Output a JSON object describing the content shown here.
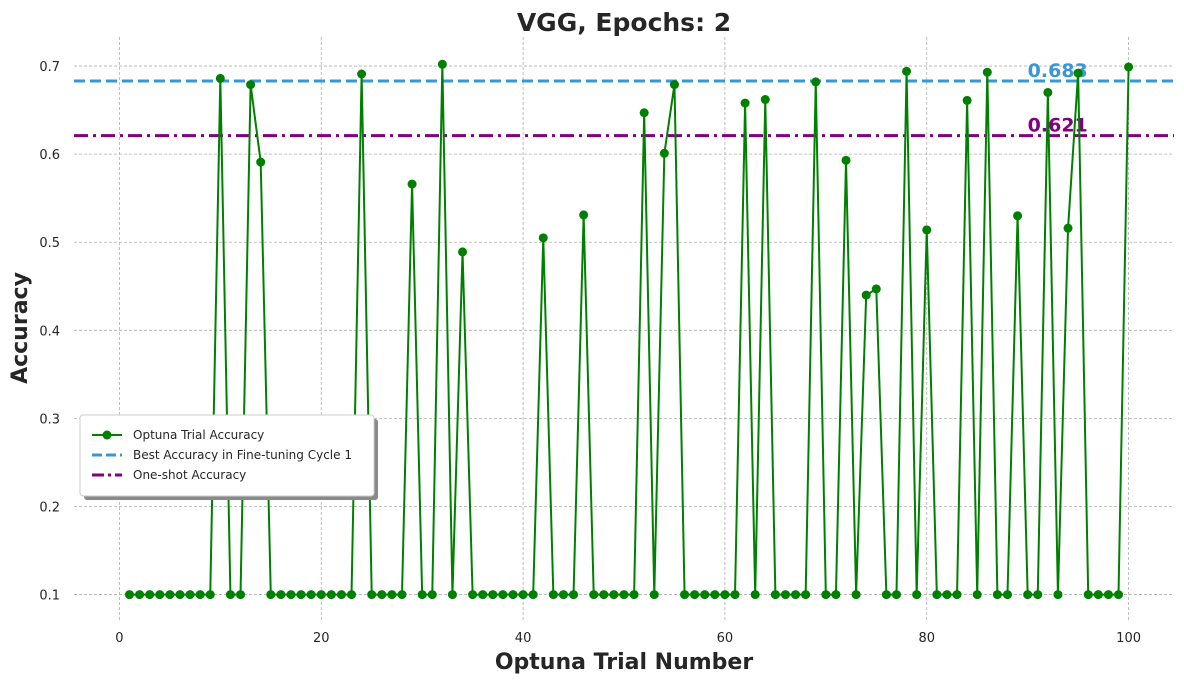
{
  "chart_data": {
    "type": "line",
    "title": "VGG, Epochs: 2",
    "xlabel": "Optuna Trial Number",
    "ylabel": "Accuracy",
    "xlim": [
      -4.5,
      104.5
    ],
    "ylim": [
      0.07,
      0.733
    ],
    "xticks": [
      0,
      20,
      40,
      60,
      80,
      100
    ],
    "xtick_labels": [
      "0",
      "20",
      "40",
      "60",
      "80",
      "100"
    ],
    "yticks": [
      0.1,
      0.2,
      0.3,
      0.4,
      0.5,
      0.6,
      0.7
    ],
    "ytick_labels": [
      "0.1",
      "0.2",
      "0.3",
      "0.4",
      "0.5",
      "0.6",
      "0.7"
    ],
    "grid": true,
    "legend_position": "center-left",
    "series": [
      {
        "name": "Optuna Trial Accuracy",
        "color": "#008000",
        "marker": "circle",
        "x": [
          1,
          2,
          3,
          4,
          5,
          6,
          7,
          8,
          9,
          10,
          11,
          12,
          13,
          14,
          15,
          16,
          17,
          18,
          19,
          20,
          21,
          22,
          23,
          24,
          25,
          26,
          27,
          28,
          29,
          30,
          31,
          32,
          33,
          34,
          35,
          36,
          37,
          38,
          39,
          40,
          41,
          42,
          43,
          44,
          45,
          46,
          47,
          48,
          49,
          50,
          51,
          52,
          53,
          54,
          55,
          56,
          57,
          58,
          59,
          60,
          61,
          62,
          63,
          64,
          65,
          66,
          67,
          68,
          69,
          70,
          71,
          72,
          73,
          74,
          75,
          76,
          77,
          78,
          79,
          80,
          81,
          82,
          83,
          84,
          85,
          86,
          87,
          88,
          89,
          90,
          91,
          92,
          93,
          94,
          95,
          96,
          97,
          98,
          99,
          100
        ],
        "values": [
          0.1,
          0.1,
          0.1,
          0.1,
          0.1,
          0.1,
          0.1,
          0.1,
          0.1,
          0.686,
          0.1,
          0.1,
          0.679,
          0.591,
          0.1,
          0.1,
          0.1,
          0.1,
          0.1,
          0.1,
          0.1,
          0.1,
          0.1,
          0.691,
          0.1,
          0.1,
          0.1,
          0.1,
          0.566,
          0.1,
          0.1,
          0.702,
          0.1,
          0.489,
          0.1,
          0.1,
          0.1,
          0.1,
          0.1,
          0.1,
          0.1,
          0.505,
          0.1,
          0.1,
          0.1,
          0.531,
          0.1,
          0.1,
          0.1,
          0.1,
          0.1,
          0.647,
          0.1,
          0.601,
          0.679,
          0.1,
          0.1,
          0.1,
          0.1,
          0.1,
          0.1,
          0.658,
          0.1,
          0.662,
          0.1,
          0.1,
          0.1,
          0.1,
          0.682,
          0.1,
          0.1,
          0.593,
          0.1,
          0.44,
          0.447,
          0.1,
          0.1,
          0.694,
          0.1,
          0.514,
          0.1,
          0.1,
          0.1,
          0.661,
          0.1,
          0.693,
          0.1,
          0.1,
          0.53,
          0.1,
          0.1,
          0.67,
          0.1,
          0.516,
          0.692,
          0.1,
          0.1,
          0.1,
          0.1,
          0.699
        ]
      }
    ],
    "reference_lines": [
      {
        "name": "Best Accuracy in Fine-tuning Cycle 1",
        "value": 0.683,
        "label": "0.683",
        "color": "#3a96d4",
        "style": "dashed"
      },
      {
        "name": "One-shot Accuracy",
        "value": 0.621,
        "label": "0.621",
        "color": "#800080",
        "style": "dashdot"
      }
    ]
  }
}
